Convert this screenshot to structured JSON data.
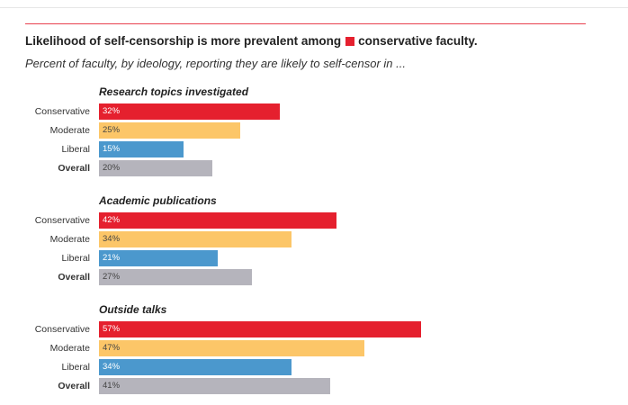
{
  "header": {
    "title_before": "Likelihood of self-censorship is more prevalent among",
    "title_after": "conservative faculty.",
    "subtitle": "Percent of faculty, by ideology, reporting they are likely to self-censor in ..."
  },
  "colors": {
    "Conservative": "#e5202e",
    "Moderate": "#fcc668",
    "Liberal": "#4b98cd",
    "Overall": "#b5b4bc",
    "label_light": "#ffffff",
    "label_dark": "#444444"
  },
  "chart_data": {
    "type": "bar",
    "orientation": "horizontal",
    "categories": [
      "Conservative",
      "Moderate",
      "Liberal",
      "Overall"
    ],
    "xlim": [
      0,
      100
    ],
    "groups": [
      {
        "title": "Research topics investigated",
        "values": [
          32,
          25,
          15,
          20
        ],
        "labels": [
          "32%",
          "25%",
          "15%",
          "20%"
        ]
      },
      {
        "title": "Academic publications",
        "values": [
          42,
          34,
          21,
          27
        ],
        "labels": [
          "42%",
          "34%",
          "21%",
          "27%"
        ]
      },
      {
        "title": "Outside talks",
        "values": [
          57,
          47,
          34,
          41
        ],
        "labels": [
          "57%",
          "47%",
          "34%",
          "41%"
        ]
      }
    ]
  }
}
